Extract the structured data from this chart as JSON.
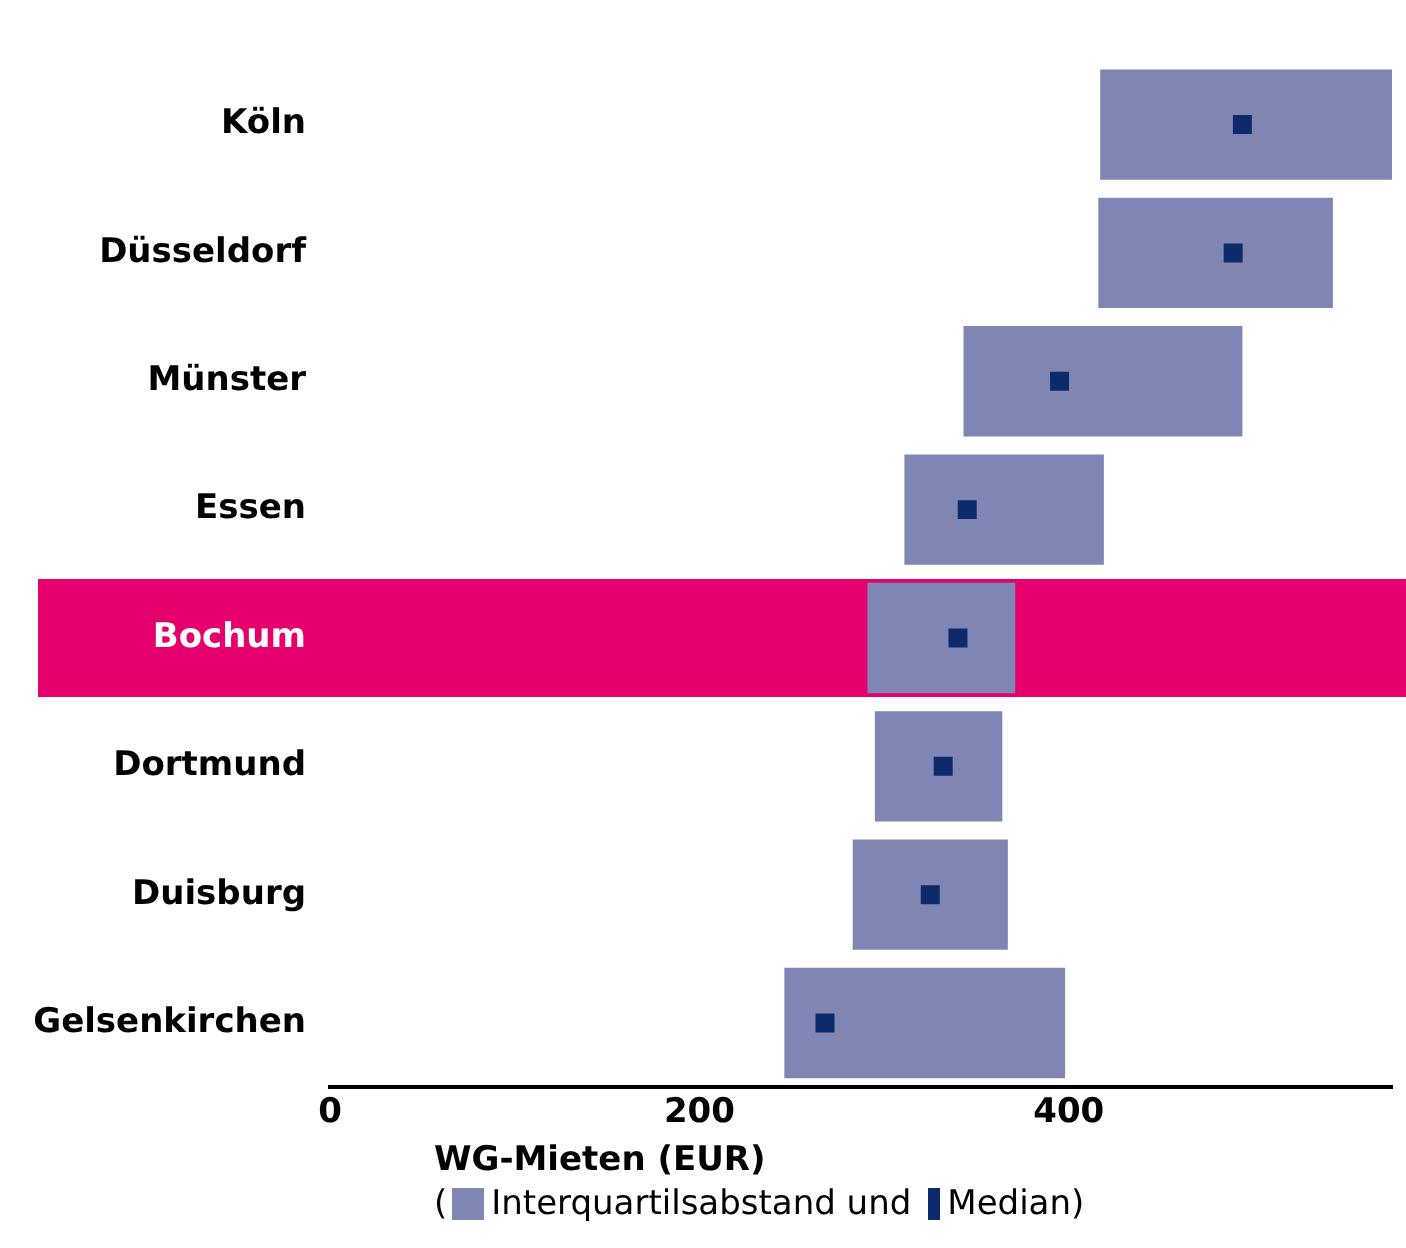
{
  "chart_data": {
    "type": "bar",
    "orientation": "horizontal",
    "xlabel": "WG-Mieten (EUR)",
    "legend_title": "(",
    "legend": "bottom",
    "categories": [
      "Köln",
      "Düsseldorf",
      "Münster",
      "Essen",
      "Bochum",
      "Dortmund",
      "Duisburg",
      "Gelsenkirchen"
    ],
    "xlim": [
      0,
      575
    ],
    "xticks": [
      0,
      200,
      400
    ],
    "grid": false,
    "series": [
      {
        "name": "Interquartilsabstand und",
        "color": "#7f86b3",
        "base": [
          417,
          416,
          343,
          311,
          291,
          295,
          283,
          246
        ],
        "values": [
          158,
          127,
          151,
          108,
          80,
          69,
          84,
          152
        ]
      },
      {
        "name": "Median)",
        "type": "scatter",
        "color": "#0d2a6b",
        "x": [
          "Köln",
          "Düsseldorf",
          "Münster",
          "Essen",
          "Bochum",
          "Dortmund",
          "Duisburg",
          "Gelsenkirchen"
        ],
        "values": [
          494,
          489,
          395,
          345,
          340,
          332,
          325,
          268
        ]
      }
    ],
    "bands": [
      {
        "axis": "y",
        "from": "Bochum",
        "to": "Bochum",
        "color": "#e5006e"
      }
    ]
  }
}
